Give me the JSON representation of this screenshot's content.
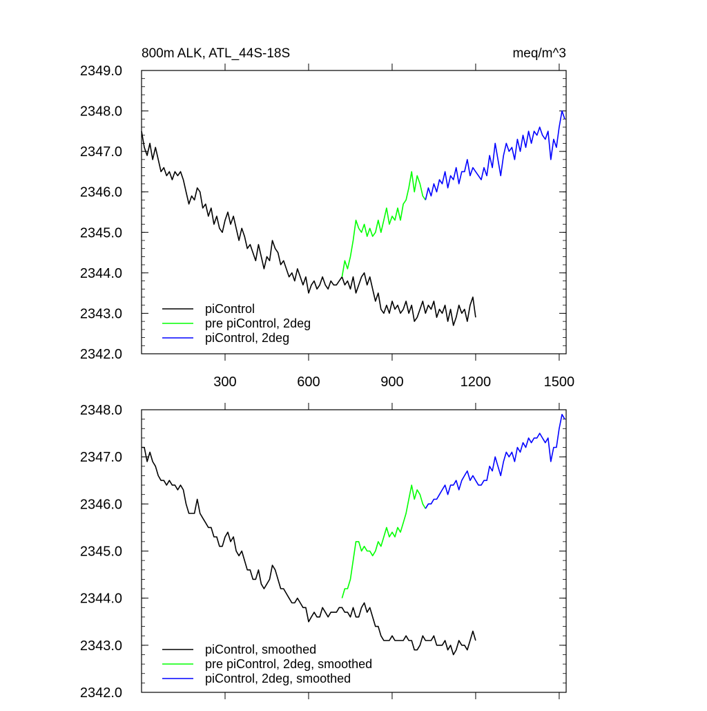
{
  "chart_data": [
    {
      "type": "line",
      "title": "800m ALK, ATL_44S-18S",
      "units": "meq/m^3",
      "xlim": [
        0,
        1525
      ],
      "ylim": [
        2342.0,
        2349.0
      ],
      "x_ticks": [
        300,
        600,
        900,
        1200,
        1500
      ],
      "x_tick_labels": [
        "300",
        "600",
        "900",
        "1200",
        "1500"
      ],
      "y_ticks": [
        2342.0,
        2343.0,
        2344.0,
        2345.0,
        2346.0,
        2347.0,
        2348.0,
        2349.0
      ],
      "y_tick_labels": [
        "2342.0",
        "2343.0",
        "2344.0",
        "2345.0",
        "2346.0",
        "2347.0",
        "2348.0",
        "2349.0"
      ],
      "grid": false,
      "legend_position": "bottom-left",
      "series": [
        {
          "name": "piControl",
          "color": "#000000",
          "x": [
            0,
            10,
            20,
            30,
            40,
            50,
            60,
            70,
            80,
            90,
            100,
            110,
            120,
            130,
            140,
            150,
            160,
            170,
            180,
            190,
            200,
            210,
            220,
            230,
            240,
            250,
            260,
            270,
            280,
            290,
            300,
            310,
            320,
            330,
            340,
            350,
            360,
            370,
            380,
            390,
            400,
            410,
            420,
            430,
            440,
            450,
            460,
            470,
            480,
            490,
            500,
            510,
            520,
            530,
            540,
            550,
            560,
            570,
            580,
            590,
            600,
            610,
            620,
            630,
            640,
            650,
            660,
            670,
            680,
            690,
            700,
            710,
            720,
            730,
            740,
            750,
            760,
            770,
            780,
            790,
            800,
            810,
            820,
            830,
            840,
            850,
            860,
            870,
            880,
            890,
            900,
            910,
            920,
            930,
            940,
            950,
            960,
            970,
            980,
            990,
            1000,
            1010,
            1020,
            1030,
            1040,
            1050,
            1060,
            1070,
            1080,
            1090,
            1100,
            1110,
            1120,
            1130,
            1140,
            1150,
            1160,
            1170,
            1180,
            1190,
            1200
          ],
          "values": [
            2347.5,
            2347.1,
            2346.9,
            2347.2,
            2346.8,
            2347.1,
            2346.8,
            2346.5,
            2346.6,
            2346.4,
            2346.5,
            2346.3,
            2346.5,
            2346.4,
            2346.5,
            2346.3,
            2346.0,
            2345.7,
            2345.9,
            2345.8,
            2346.1,
            2346.0,
            2345.6,
            2345.7,
            2345.4,
            2345.6,
            2345.2,
            2345.4,
            2345.1,
            2345.0,
            2345.3,
            2345.5,
            2345.2,
            2345.4,
            2345.1,
            2344.8,
            2345.1,
            2344.9,
            2344.6,
            2344.7,
            2344.5,
            2344.3,
            2344.7,
            2344.4,
            2344.1,
            2344.4,
            2344.3,
            2344.8,
            2344.6,
            2344.5,
            2344.2,
            2344.3,
            2344.1,
            2343.9,
            2344.0,
            2343.8,
            2344.1,
            2343.9,
            2343.7,
            2343.9,
            2343.5,
            2343.7,
            2343.8,
            2343.6,
            2343.7,
            2343.9,
            2343.7,
            2343.6,
            2343.8,
            2343.7,
            2343.7,
            2343.8,
            2343.9,
            2343.7,
            2343.8,
            2343.6,
            2343.9,
            2343.5,
            2343.7,
            2343.9,
            2344.0,
            2343.7,
            2343.9,
            2343.6,
            2343.3,
            2343.5,
            2343.1,
            2343.0,
            2343.2,
            2343.0,
            2343.3,
            2343.1,
            2343.2,
            2343.0,
            2343.1,
            2343.3,
            2343.0,
            2343.2,
            2342.8,
            2342.9,
            2343.1,
            2343.3,
            2343.0,
            2343.2,
            2343.1,
            2343.3,
            2342.9,
            2343.1,
            2343.0,
            2343.2,
            2342.8,
            2343.1,
            2342.7,
            2342.9,
            2343.2,
            2343.0,
            2343.1,
            2342.8,
            2343.2,
            2343.4,
            2342.9
          ]
        },
        {
          "name": "pre piControl, 2deg",
          "color": "#00ff00",
          "x": [
            720,
            730,
            740,
            750,
            760,
            770,
            780,
            790,
            800,
            810,
            820,
            830,
            840,
            850,
            860,
            870,
            880,
            890,
            900,
            910,
            920,
            930,
            940,
            950,
            960,
            970,
            980,
            990,
            1000,
            1010,
            1020
          ],
          "values": [
            2343.9,
            2344.3,
            2344.1,
            2344.4,
            2344.8,
            2345.3,
            2345.1,
            2345.0,
            2345.2,
            2344.9,
            2345.1,
            2344.9,
            2345.0,
            2345.3,
            2345.0,
            2345.3,
            2345.6,
            2345.2,
            2345.4,
            2345.3,
            2345.6,
            2345.3,
            2345.7,
            2345.8,
            2346.1,
            2346.5,
            2346.0,
            2346.4,
            2346.2,
            2345.9,
            2345.8
          ]
        },
        {
          "name": "piControl, 2deg",
          "color": "#0000ff",
          "x": [
            1020,
            1030,
            1040,
            1050,
            1060,
            1070,
            1080,
            1090,
            1100,
            1110,
            1120,
            1130,
            1140,
            1150,
            1160,
            1170,
            1180,
            1190,
            1200,
            1210,
            1220,
            1230,
            1240,
            1250,
            1260,
            1270,
            1280,
            1290,
            1300,
            1310,
            1320,
            1330,
            1340,
            1350,
            1360,
            1370,
            1380,
            1390,
            1400,
            1410,
            1420,
            1430,
            1440,
            1450,
            1460,
            1470,
            1480,
            1490,
            1500,
            1510,
            1520
          ],
          "values": [
            2345.8,
            2346.1,
            2345.9,
            2346.2,
            2346.0,
            2346.3,
            2346.2,
            2346.5,
            2346.1,
            2346.4,
            2346.3,
            2346.6,
            2346.2,
            2346.5,
            2346.5,
            2346.8,
            2346.4,
            2346.6,
            2346.5,
            2346.4,
            2346.3,
            2346.6,
            2346.4,
            2346.9,
            2346.6,
            2347.2,
            2346.8,
            2346.4,
            2346.9,
            2347.2,
            2347.0,
            2347.1,
            2346.8,
            2347.3,
            2347.0,
            2347.4,
            2347.1,
            2347.5,
            2347.2,
            2347.5,
            2347.4,
            2347.6,
            2347.4,
            2347.3,
            2347.5,
            2346.8,
            2347.3,
            2347.1,
            2347.6,
            2348.0,
            2347.8
          ]
        }
      ]
    },
    {
      "type": "line",
      "title": "",
      "xlim": [
        0,
        1525
      ],
      "ylim": [
        2342.0,
        2348.0
      ],
      "x_ticks": [
        300,
        600,
        900,
        1200,
        1500
      ],
      "y_ticks": [
        2342.0,
        2343.0,
        2344.0,
        2345.0,
        2346.0,
        2347.0,
        2348.0
      ],
      "y_tick_labels": [
        "2342.0",
        "2343.0",
        "2344.0",
        "2345.0",
        "2346.0",
        "2347.0",
        "2348.0"
      ],
      "grid": false,
      "legend_position": "bottom-left",
      "series": [
        {
          "name": "piControl, smoothed",
          "color": "#000000",
          "x": [
            0,
            10,
            20,
            30,
            40,
            50,
            60,
            70,
            80,
            90,
            100,
            110,
            120,
            130,
            140,
            150,
            160,
            170,
            180,
            190,
            200,
            210,
            220,
            230,
            240,
            250,
            260,
            270,
            280,
            290,
            300,
            310,
            320,
            330,
            340,
            350,
            360,
            370,
            380,
            390,
            400,
            410,
            420,
            430,
            440,
            450,
            460,
            470,
            480,
            490,
            500,
            510,
            520,
            530,
            540,
            550,
            560,
            570,
            580,
            590,
            600,
            610,
            620,
            630,
            640,
            650,
            660,
            670,
            680,
            690,
            700,
            710,
            720,
            730,
            740,
            750,
            760,
            770,
            780,
            790,
            800,
            810,
            820,
            830,
            840,
            850,
            860,
            870,
            880,
            890,
            900,
            910,
            920,
            930,
            940,
            950,
            960,
            970,
            980,
            990,
            1000,
            1010,
            1020,
            1030,
            1040,
            1050,
            1060,
            1070,
            1080,
            1090,
            1100,
            1110,
            1120,
            1130,
            1140,
            1150,
            1160,
            1170,
            1180,
            1190,
            1200
          ],
          "values": [
            2347.2,
            2347.2,
            2346.9,
            2347.1,
            2346.9,
            2346.8,
            2346.6,
            2346.5,
            2346.5,
            2346.4,
            2346.5,
            2346.4,
            2346.4,
            2346.3,
            2346.4,
            2346.3,
            2346.0,
            2345.8,
            2345.8,
            2345.8,
            2346.1,
            2345.8,
            2345.7,
            2345.6,
            2345.5,
            2345.5,
            2345.3,
            2345.3,
            2345.1,
            2345.1,
            2345.3,
            2345.4,
            2345.2,
            2345.3,
            2345.0,
            2344.9,
            2345.0,
            2344.8,
            2344.6,
            2344.6,
            2344.4,
            2344.4,
            2344.6,
            2344.3,
            2344.2,
            2344.3,
            2344.4,
            2344.7,
            2344.6,
            2344.4,
            2344.2,
            2344.2,
            2344.1,
            2344.0,
            2343.9,
            2343.9,
            2344.0,
            2343.9,
            2343.8,
            2343.8,
            2343.5,
            2343.6,
            2343.7,
            2343.6,
            2343.6,
            2343.8,
            2343.7,
            2343.6,
            2343.7,
            2343.7,
            2343.7,
            2343.8,
            2343.8,
            2343.7,
            2343.7,
            2343.6,
            2343.8,
            2343.6,
            2343.6,
            2343.8,
            2343.9,
            2343.7,
            2343.8,
            2343.6,
            2343.4,
            2343.4,
            2343.2,
            2343.1,
            2343.1,
            2343.1,
            2343.2,
            2343.1,
            2343.1,
            2343.1,
            2343.1,
            2343.2,
            2343.1,
            2343.1,
            2342.9,
            2342.9,
            2343.0,
            2343.2,
            2343.1,
            2343.1,
            2343.1,
            2343.2,
            2343.0,
            2343.0,
            2343.0,
            2343.1,
            2342.9,
            2343.0,
            2342.8,
            2342.9,
            2343.1,
            2343.0,
            2343.0,
            2342.9,
            2343.1,
            2343.3,
            2343.1
          ]
        },
        {
          "name": "pre piControl, 2deg, smoothed",
          "color": "#00ff00",
          "x": [
            720,
            730,
            740,
            750,
            760,
            770,
            780,
            790,
            800,
            810,
            820,
            830,
            840,
            850,
            860,
            870,
            880,
            890,
            900,
            910,
            920,
            930,
            940,
            950,
            960,
            970,
            980,
            990,
            1000,
            1010,
            1020
          ],
          "values": [
            2344.0,
            2344.2,
            2344.2,
            2344.4,
            2344.8,
            2345.2,
            2345.2,
            2345.0,
            2345.1,
            2345.0,
            2345.0,
            2344.9,
            2345.0,
            2345.2,
            2345.1,
            2345.3,
            2345.5,
            2345.3,
            2345.4,
            2345.3,
            2345.5,
            2345.4,
            2345.6,
            2345.8,
            2346.1,
            2346.4,
            2346.1,
            2346.3,
            2346.2,
            2346.0,
            2345.9
          ]
        },
        {
          "name": "piControl, 2deg, smoothed",
          "color": "#0000ff",
          "x": [
            1020,
            1030,
            1040,
            1050,
            1060,
            1070,
            1080,
            1090,
            1100,
            1110,
            1120,
            1130,
            1140,
            1150,
            1160,
            1170,
            1180,
            1190,
            1200,
            1210,
            1220,
            1230,
            1240,
            1250,
            1260,
            1270,
            1280,
            1290,
            1300,
            1310,
            1320,
            1330,
            1340,
            1350,
            1360,
            1370,
            1380,
            1390,
            1400,
            1410,
            1420,
            1430,
            1440,
            1450,
            1460,
            1470,
            1480,
            1490,
            1500,
            1510,
            1520
          ],
          "values": [
            2345.9,
            2346.0,
            2346.0,
            2346.1,
            2346.1,
            2346.2,
            2346.3,
            2346.4,
            2346.2,
            2346.4,
            2346.4,
            2346.5,
            2346.3,
            2346.5,
            2346.6,
            2346.7,
            2346.5,
            2346.6,
            2346.5,
            2346.4,
            2346.4,
            2346.5,
            2346.5,
            2346.8,
            2346.7,
            2347.0,
            2346.8,
            2346.6,
            2346.9,
            2347.1,
            2347.0,
            2347.1,
            2346.9,
            2347.2,
            2347.1,
            2347.3,
            2347.2,
            2347.4,
            2347.3,
            2347.4,
            2347.4,
            2347.5,
            2347.4,
            2347.3,
            2347.4,
            2346.9,
            2347.2,
            2347.2,
            2347.6,
            2347.9,
            2347.8
          ]
        }
      ]
    }
  ]
}
